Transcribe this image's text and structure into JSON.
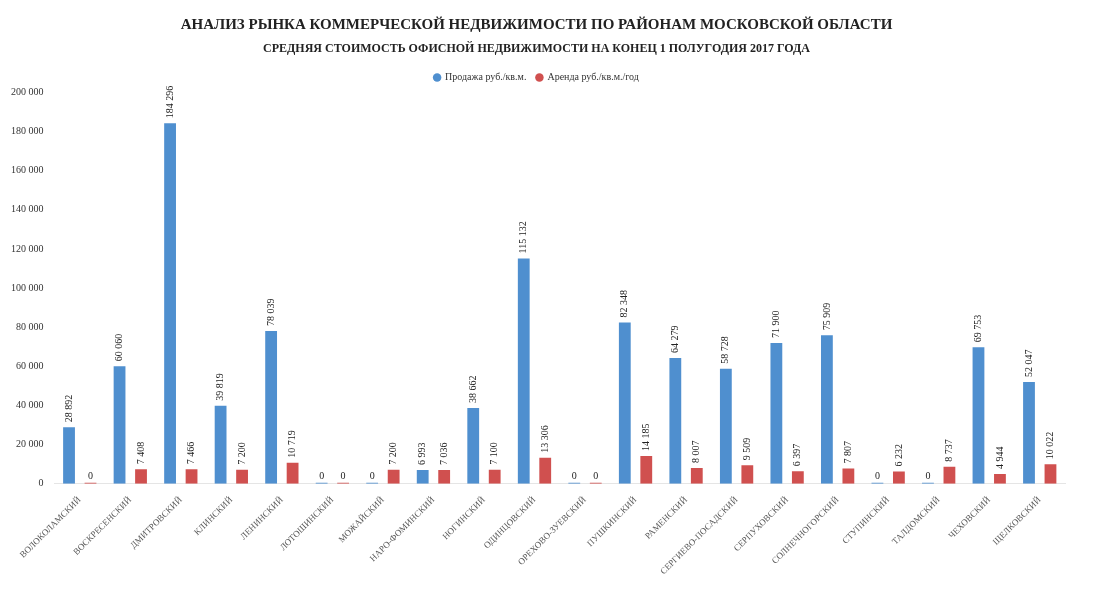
{
  "chart_data": {
    "type": "bar",
    "title": "АНАЛИЗ РЫНКА КОММЕРЧЕСКОЙ НЕДВИЖИМОСТИ ПО РАЙОНАМ МОСКОВСКОЙ ОБЛАСТИ",
    "subtitle": "СРЕДНЯЯ СТОИМОСТЬ ОФИСНОЙ НЕДВИЖИМОСТИ НА КОНЕЦ 1 ПОЛУГОДИЯ 2017 ГОДА",
    "categories": [
      "ВОЛОКОЛАМСКИЙ",
      "ВОСКРЕСЕНСКИЙ",
      "ДМИТРОВСКИЙ",
      "КЛИНСКИЙ",
      "ЛЕНИНСКИЙ",
      "ЛОТОШИНСКИЙ",
      "МОЖАЙСКИЙ",
      "НАРО-ФОМИНСКИЙ",
      "НОГИНСКИЙ",
      "ОДИНЦОВСКИЙ",
      "ОРЕХОВО-ЗУЕВСКИЙ",
      "ПУШКИНСКИЙ",
      "РАМЕНСКИЙ",
      "СЕРГИЕВО-ПОСАДСКИЙ",
      "СЕРПУХОВСКИЙ",
      "СОЛНЕЧНОГОРСКИЙ",
      "СТУПИНСКИЙ",
      "ТАЛДОМСКИЙ",
      "ЧЕХОВСКИЙ",
      "ЩЕЛКОВСКИЙ"
    ],
    "series": [
      {
        "name": "Продажа руб./кв.м.",
        "color": "#4f8fcf",
        "values": [
          28892,
          60060,
          184296,
          39819,
          78039,
          0,
          0,
          6993,
          38662,
          115132,
          0,
          82348,
          64279,
          58728,
          71900,
          75909,
          0,
          0,
          69753,
          52047
        ]
      },
      {
        "name": "Аренда руб./кв.м./год",
        "color": "#d0504f",
        "values": [
          0,
          7408,
          7466,
          7200,
          10719,
          0,
          7200,
          7036,
          7100,
          13306,
          0,
          14185,
          8007,
          9509,
          6397,
          7807,
          6232,
          8737,
          4944,
          10022
        ]
      }
    ],
    "ylim": [
      0,
      200000
    ],
    "yticks": [
      0,
      {
        "value": 20000,
        "label": "20 000"
      },
      {
        "value": 40000,
        "label": "40 000"
      },
      {
        "value": 60000,
        "label": "60 000"
      },
      {
        "value": 80000,
        "label": "80 000"
      },
      {
        "value": 100000,
        "label": "100 000"
      },
      {
        "value": 120000,
        "label": "120 000"
      },
      {
        "value": 140000,
        "label": "140 000"
      },
      {
        "value": 160000,
        "label": "160 000"
      },
      {
        "value": 180000,
        "label": "180 000"
      },
      {
        "value": 200000,
        "label": "200 000"
      }
    ],
    "data_labels": true,
    "legend": "top",
    "grid": false
  }
}
